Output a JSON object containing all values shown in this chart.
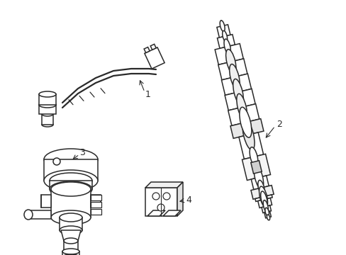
{
  "background_color": "#ffffff",
  "line_color": "#2a2a2a",
  "lw": 1.1,
  "figsize": [
    4.89,
    3.6
  ],
  "dpi": 100
}
